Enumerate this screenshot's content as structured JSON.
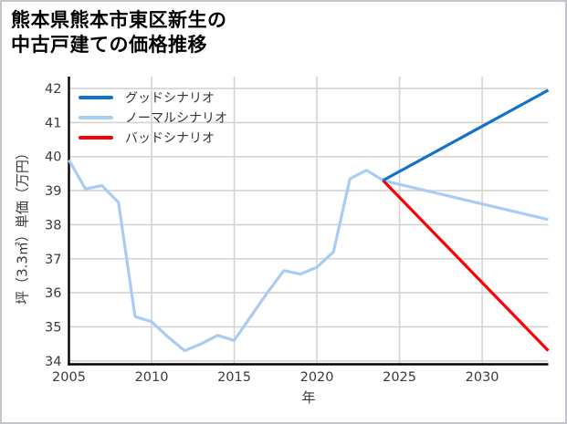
{
  "window": {
    "background": "#ffffff",
    "border_color": "#c2c5c9"
  },
  "chart_data": {
    "type": "line",
    "title": "熊本県熊本市東区新生の中古戸建ての価格推移",
    "title_lines": [
      "熊本県熊本市東区新生の",
      "中古戸建ての価格推移"
    ],
    "xlabel": "年",
    "ylabel": "坪（3.3㎡）単価（万円）",
    "xlim": [
      2005,
      2034
    ],
    "ylim": [
      33.9,
      42.35
    ],
    "xticks": [
      2005,
      2010,
      2015,
      2020,
      2025,
      2030
    ],
    "yticks": [
      34,
      35,
      36,
      37,
      38,
      39,
      40,
      41,
      42
    ],
    "grid": true,
    "legend_position": "upper left",
    "colors": {
      "grid": "#d3d3d3",
      "spine": "#000000",
      "tick_label": "#3a3a3a",
      "good": "#1172c8",
      "normal": "#a8cdf2",
      "bad": "#fb0006"
    },
    "draw_order": [
      "historical",
      "normal",
      "bad",
      "good"
    ],
    "series": [
      {
        "id": "good",
        "label": "グッドシナリオ",
        "legend": true,
        "color": "#1172c8",
        "x": [
          2024,
          2034
        ],
        "values": [
          39.3,
          41.95
        ]
      },
      {
        "id": "normal",
        "label": "ノーマルシナリオ",
        "legend": true,
        "color": "#a8cdf2",
        "x": [
          2024,
          2034
        ],
        "values": [
          39.3,
          38.15
        ]
      },
      {
        "id": "bad",
        "label": "バッドシナリオ",
        "legend": true,
        "color": "#fb0006",
        "x": [
          2024,
          2034
        ],
        "values": [
          39.3,
          34.3
        ]
      },
      {
        "id": "historical",
        "label": "",
        "legend": false,
        "color": "#a8cdf2",
        "x": [
          2005,
          2006,
          2007,
          2008,
          2009,
          2010,
          2011,
          2012,
          2013,
          2014,
          2015,
          2016,
          2017,
          2018,
          2019,
          2020,
          2021,
          2022,
          2023,
          2024
        ],
        "values": [
          39.9,
          39.05,
          39.15,
          38.65,
          35.3,
          35.15,
          34.7,
          34.3,
          34.5,
          34.75,
          34.6,
          35.3,
          36.0,
          36.65,
          36.55,
          36.75,
          37.2,
          39.35,
          39.6,
          39.3
        ]
      }
    ]
  }
}
